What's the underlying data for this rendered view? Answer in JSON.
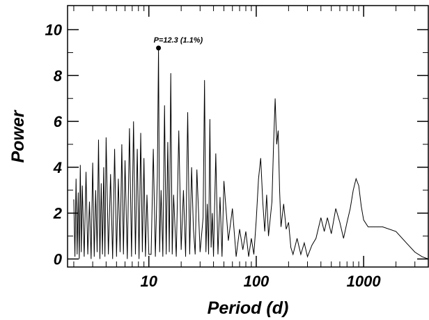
{
  "chart_data": {
    "type": "line",
    "x_label": "Period (d)",
    "y_label": "Power",
    "xscale": "log",
    "annotation": {
      "text": "P=12.3 (1.1%)",
      "x": 12.3,
      "y": 9.2
    },
    "xlim": [
      1.75,
      4000
    ],
    "ylim": [
      -0.35,
      11.05
    ],
    "xticks": [
      10,
      100,
      1000
    ],
    "xminorticks": [
      2,
      3,
      4,
      5,
      6,
      7,
      8,
      9,
      20,
      30,
      40,
      50,
      60,
      70,
      80,
      90,
      200,
      300,
      400,
      500,
      600,
      700,
      800,
      900,
      2000,
      3000
    ],
    "yticks": [
      0,
      2,
      4,
      6,
      8,
      10
    ],
    "yminorticks": [
      1,
      3,
      5,
      7,
      9
    ],
    "x": [
      2.0,
      2.05,
      2.1,
      2.15,
      2.2,
      2.25,
      2.3,
      2.35,
      2.4,
      2.5,
      2.6,
      2.7,
      2.8,
      2.9,
      3.0,
      3.1,
      3.2,
      3.3,
      3.4,
      3.5,
      3.6,
      3.7,
      3.8,
      3.9,
      4.0,
      4.2,
      4.4,
      4.6,
      4.8,
      5.0,
      5.2,
      5.4,
      5.6,
      5.8,
      6.0,
      6.3,
      6.6,
      6.9,
      7.2,
      7.5,
      7.8,
      8.1,
      8.4,
      8.7,
      9.0,
      9.3,
      9.6,
      10.0,
      10.5,
      11,
      11.5,
      12,
      12.3,
      12.6,
      13,
      13.5,
      14,
      14.5,
      15,
      15.5,
      16,
      16.5,
      17,
      18,
      19,
      20,
      21,
      22,
      23,
      24,
      25,
      26,
      27,
      28,
      30,
      32,
      33,
      34,
      35,
      36,
      37,
      38,
      39,
      40,
      42,
      44,
      46,
      48,
      50,
      55,
      60,
      65,
      70,
      75,
      80,
      85,
      90,
      95,
      100,
      105,
      110,
      115,
      120,
      125,
      130,
      140,
      145,
      150,
      155,
      160,
      165,
      170,
      180,
      190,
      200,
      210,
      220,
      240,
      260,
      280,
      300,
      330,
      360,
      400,
      430,
      460,
      500,
      550,
      600,
      650,
      700,
      750,
      800,
      850,
      900,
      950,
      1000,
      1100,
      1200,
      1300,
      1500,
      2000,
      2500,
      3000,
      3500,
      4000
    ],
    "series": [
      {
        "color": "#000000",
        "values": [
          2.6,
          0.1,
          3.5,
          0.2,
          2.9,
          0.0,
          4.1,
          0.3,
          3.2,
          0.1,
          3.8,
          0.2,
          2.5,
          0.0,
          4.2,
          0.1,
          3.0,
          0.3,
          5.2,
          0.0,
          3.3,
          0.2,
          4.0,
          0.1,
          5.3,
          0.2,
          3.7,
          0.0,
          4.8,
          0.1,
          3.5,
          0.3,
          5.0,
          0.2,
          4.3,
          0.0,
          5.7,
          0.1,
          6.0,
          0.2,
          4.8,
          0.0,
          5.5,
          0.3,
          4.4,
          0.1,
          2.8,
          0.2,
          0.2,
          4.8,
          0.1,
          3.6,
          9.2,
          0.3,
          3.0,
          0.1,
          6.7,
          0.2,
          5.1,
          0.3,
          8.1,
          0.2,
          2.8,
          0.1,
          5.6,
          0.4,
          3.0,
          0.1,
          6.4,
          0.2,
          4.0,
          1.3,
          0.2,
          3.9,
          0.3,
          1.8,
          7.8,
          0.3,
          2.4,
          0.2,
          6.1,
          0.5,
          2.0,
          0.1,
          4.6,
          0.2,
          2.7,
          0.1,
          3.4,
          0.8,
          2.2,
          0.1,
          1.3,
          0.4,
          1.2,
          0.1,
          0.9,
          0.2,
          1.7,
          3.5,
          4.4,
          2.5,
          1.2,
          2.8,
          1.0,
          2.5,
          5.0,
          7.0,
          5.0,
          5.6,
          3.0,
          1.4,
          2.4,
          1.3,
          1.6,
          0.5,
          0.2,
          0.9,
          0.2,
          0.7,
          0.1,
          0.6,
          0.9,
          1.8,
          1.2,
          1.8,
          1.1,
          2.2,
          1.6,
          0.9,
          1.6,
          2.2,
          3.0,
          3.5,
          3.2,
          2.3,
          1.7,
          1.4,
          1.4,
          1.4,
          1.4,
          1.2,
          0.7,
          0.3,
          0.1,
          0.0
        ]
      }
    ]
  }
}
